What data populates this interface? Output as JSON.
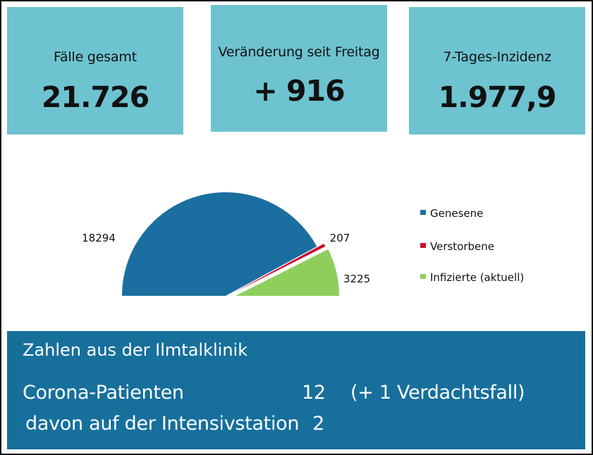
{
  "kpis": {
    "cases_total": {
      "label": "Fälle gesamt",
      "value": "21.726"
    },
    "change_since_friday": {
      "label": "Veränderung seit Freitag",
      "value": "+ 916"
    },
    "incidence_7day": {
      "label": "7-Tages-Inzidenz",
      "value": "1.977,9"
    }
  },
  "chart_data": {
    "type": "pie",
    "style": "half-doughnut-exploded",
    "slices": [
      {
        "name": "Genesene",
        "value": 18294,
        "label": "18294",
        "color": "#1a6fa0"
      },
      {
        "name": "Verstorbene",
        "value": 207,
        "label": "207",
        "color": "#c8102e"
      },
      {
        "name": "Infizierte (aktuell)",
        "value": 3225,
        "label": "3225",
        "color": "#8ecf5c"
      }
    ],
    "legend": [
      "Genesene",
      "Verstorbene",
      "Infizierte (aktuell)"
    ],
    "legend_position": "right"
  },
  "clinic": {
    "title": "Zahlen aus der Ilmtalklinik",
    "rows": [
      {
        "label": "Corona-Patienten",
        "count": "12",
        "note": "(+ 1 Verdachtsfall)"
      },
      {
        "label": "davon auf der Intensivstation",
        "count": "2"
      }
    ],
    "background_color": "#176f9c"
  },
  "colors": {
    "card_bg": "#6ec3d0"
  }
}
